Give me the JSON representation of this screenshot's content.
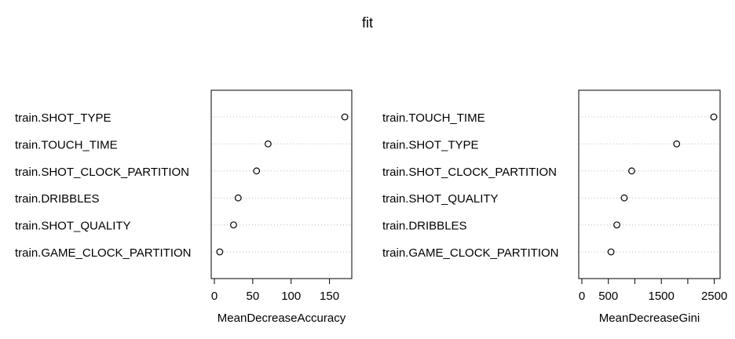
{
  "title": "fit",
  "colors": {
    "axis": "#000000",
    "grid": "#bebebe",
    "point": "#000000",
    "background": "#ffffff"
  },
  "chart_data": [
    {
      "type": "scatter",
      "xlabel": "MeanDecreaseAccuracy",
      "xlim": [
        0,
        175
      ],
      "ticks": [
        0,
        50,
        100,
        150
      ],
      "tick_labels": [
        "0",
        "50",
        "100",
        "150"
      ],
      "grid": "dotted horizontal",
      "categories": [
        "train.SHOT_TYPE",
        "train.TOUCH_TIME",
        "train.SHOT_CLOCK_PARTITION",
        "train.DRIBBLES",
        "train.SHOT_QUALITY",
        "train.GAME_CLOCK_PARTITION"
      ],
      "values": [
        170,
        70,
        55,
        31,
        25,
        7
      ]
    },
    {
      "type": "scatter",
      "xlabel": "MeanDecreaseGini",
      "xlim": [
        0,
        2550
      ],
      "ticks": [
        0,
        500,
        1000,
        1500,
        2000,
        2500
      ],
      "tick_labels": [
        "0",
        "500",
        "",
        "1500",
        "",
        "2500"
      ],
      "grid": "dotted horizontal",
      "categories": [
        "train.TOUCH_TIME",
        "train.SHOT_TYPE",
        "train.SHOT_CLOCK_PARTITION",
        "train.SHOT_QUALITY",
        "train.DRIBBLES",
        "train.GAME_CLOCK_PARTITION"
      ],
      "values": [
        2490,
        1790,
        940,
        800,
        660,
        550
      ]
    }
  ]
}
